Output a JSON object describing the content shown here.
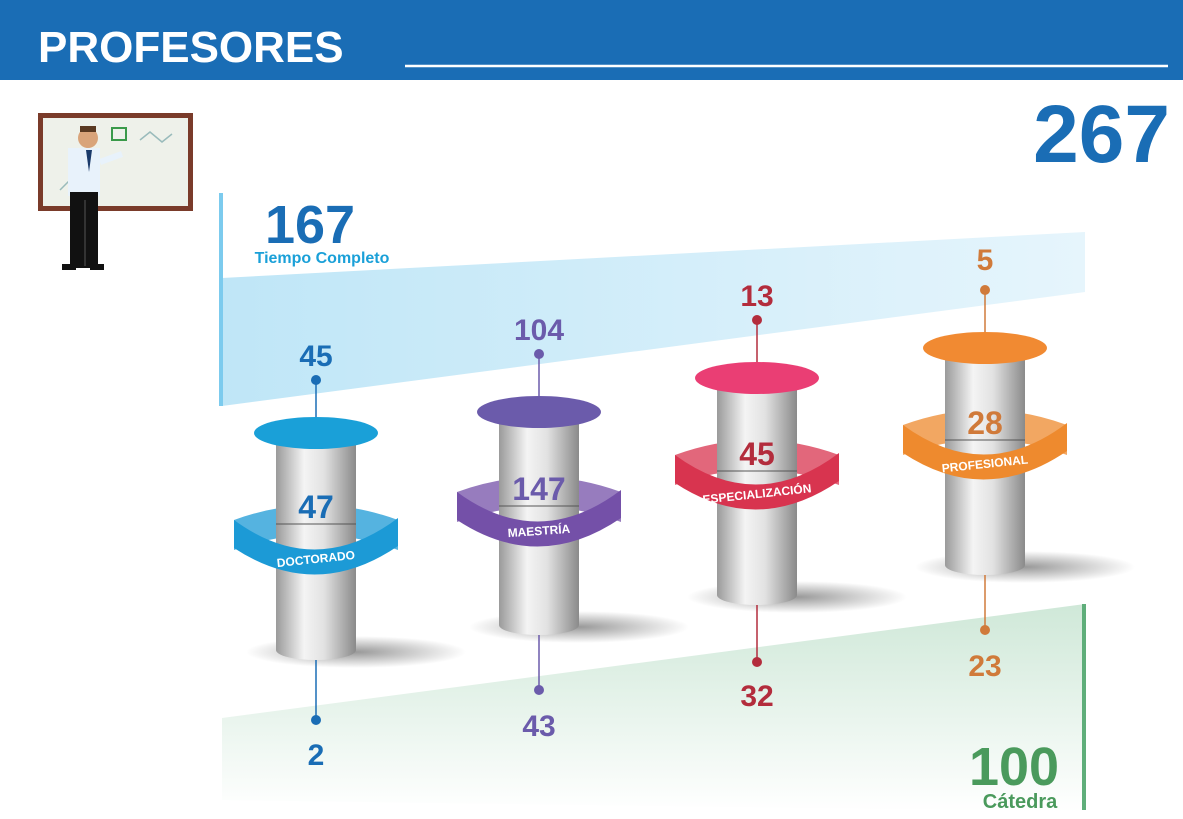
{
  "header": {
    "title": "PROFESORES"
  },
  "total": 267,
  "tiempo_completo": {
    "value": 167,
    "label": "Tiempo Completo"
  },
  "catedra": {
    "value": 100,
    "label": "Cátedra"
  },
  "columns": [
    {
      "name": "DOCTORADO",
      "top": 45,
      "middle": 47,
      "bottom": 2
    },
    {
      "name": "MAESTRÍA",
      "top": 104,
      "middle": 147,
      "bottom": 43
    },
    {
      "name": "ESPECIALIZACIÓN",
      "top": 13,
      "middle": 45,
      "bottom": 32
    },
    {
      "name": "PROFESIONAL",
      "top": 5,
      "middle": 28,
      "bottom": 23
    }
  ]
}
